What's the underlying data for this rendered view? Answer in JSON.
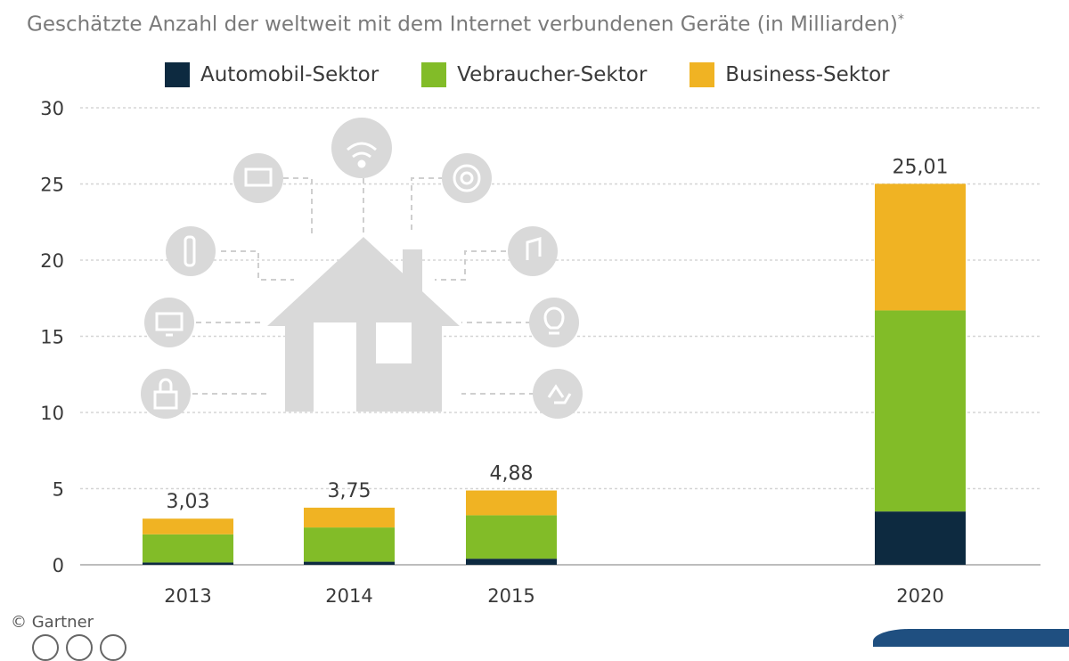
{
  "chart_data": {
    "type": "bar",
    "stacked": true,
    "subtitle": "Geschätzte Anzahl der weltweit mit dem Internet verbundenen Geräte (in Milliarden)",
    "subtitle_marker": "*",
    "categories": [
      "2013",
      "2014",
      "2015",
      "2020"
    ],
    "series": [
      {
        "name": "Automobil-Sektor",
        "color": "#0d2a40",
        "values": [
          0.15,
          0.2,
          0.4,
          3.5
        ]
      },
      {
        "name": "Vebraucher-Sektor",
        "color": "#82bc28",
        "values": [
          1.85,
          2.25,
          2.85,
          13.2
        ]
      },
      {
        "name": "Business-Sektor",
        "color": "#f0b323",
        "values": [
          1.03,
          1.3,
          1.63,
          8.31
        ]
      }
    ],
    "totals": [
      "3,03",
      "3,75",
      "4,88",
      "25,01"
    ],
    "yticks": [
      0,
      5,
      10,
      15,
      20,
      25,
      30
    ],
    "ylim": [
      0,
      30
    ],
    "grid": true,
    "legend_position": "top"
  },
  "footer": {
    "source": "© Gartner"
  }
}
